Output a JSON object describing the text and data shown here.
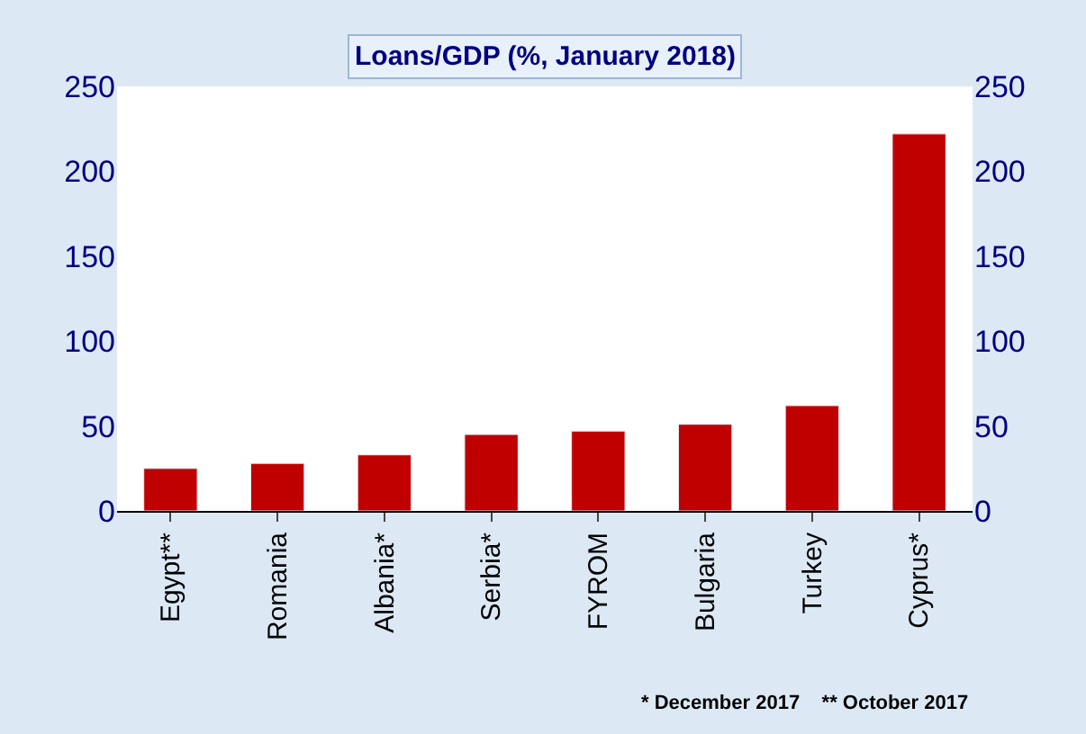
{
  "chart_data": {
    "type": "bar",
    "title": "Loans/GDP (%, January 2018)",
    "categories": [
      "Egypt**",
      "Romania",
      "Albania*",
      "Serbia*",
      "FYROM",
      "Bulgaria",
      "Turkey",
      "Cyprus*"
    ],
    "series": [
      {
        "color": "#c00000",
        "values": [
          25,
          28,
          33,
          45,
          47,
          51,
          62,
          222
        ]
      }
    ],
    "ylim": [
      0,
      250
    ],
    "yticks": [
      0,
      50,
      100,
      150,
      200,
      250
    ],
    "y2lim": [
      0,
      250
    ],
    "y2ticks": [
      0,
      50,
      100,
      150,
      200,
      250
    ],
    "annotations": [
      "* December 2017    ** October 2017"
    ]
  }
}
